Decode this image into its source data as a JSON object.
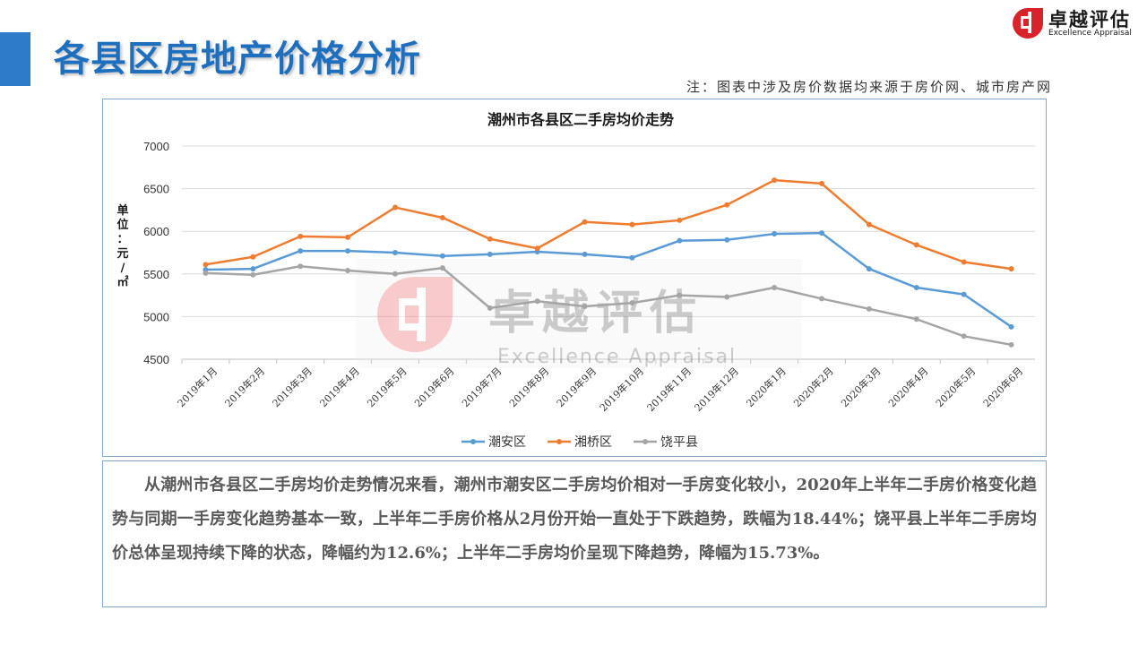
{
  "header": {
    "title": "各县区房地产价格分析",
    "logo_cn": "卓越评估",
    "logo_en": "Excellence Appraisal",
    "note": "注：图表中涉及房价数据均来源于房价网、城市房产网"
  },
  "watermark": {
    "cn": "卓越评估",
    "en": "Excellence Appraisal"
  },
  "colors": {
    "title": "#1f6fbf",
    "accent": "#2e7cc9",
    "logo_red": "#d9232a",
    "border": "#7fa7cf"
  },
  "chart_data": {
    "type": "line",
    "title": "潮州市各县区二手房均价走势",
    "ylabel": "单位：元/㎡",
    "xlabel": "",
    "ylim": [
      4500,
      7000
    ],
    "yticks": [
      4500,
      5000,
      5500,
      6000,
      6500,
      7000
    ],
    "grid": true,
    "legend_position": "bottom",
    "categories": [
      "2019年1月",
      "2019年2月",
      "2019年3月",
      "2019年4月",
      "2019年5月",
      "2019年6月",
      "2019年7月",
      "2019年8月",
      "2019年9月",
      "2019年10月",
      "2019年11月",
      "2019年12月",
      "2020年1月",
      "2020年2月",
      "2020年3月",
      "2020年4月",
      "2020年5月",
      "2020年6月"
    ],
    "series": [
      {
        "name": "潮安区",
        "color": "#5b9bd5",
        "values": [
          5550,
          5560,
          5770,
          5770,
          5750,
          5710,
          5730,
          5760,
          5730,
          5690,
          5890,
          5900,
          5970,
          5980,
          5560,
          5340,
          5260,
          4880
        ]
      },
      {
        "name": "湘桥区",
        "color": "#ed7d31",
        "values": [
          5610,
          5700,
          5940,
          5930,
          6280,
          6160,
          5910,
          5800,
          6110,
          6080,
          6130,
          6310,
          6600,
          6560,
          6080,
          5840,
          5640,
          5560
        ]
      },
      {
        "name": "饶平县",
        "color": "#a5a5a5",
        "values": [
          5510,
          5490,
          5590,
          5540,
          5500,
          5570,
          5100,
          5180,
          5120,
          5160,
          5250,
          5230,
          5340,
          5210,
          5090,
          4970,
          4770,
          4670
        ]
      }
    ]
  },
  "summary": {
    "text": "从潮州市各县区二手房均价走势情况来看，潮州市潮安区二手房均价相对一手房变化较小，2020年上半年二手房价格变化趋势与同期一手房变化趋势基本一致，上半年二手房价格从2月份开始一直处于下跌趋势，跌幅为18.44%；饶平县上半年二手房均价总体呈现持续下降的状态，降幅约为12.6%；上半年二手房均价呈现下降趋势，降幅为15.73%。"
  }
}
